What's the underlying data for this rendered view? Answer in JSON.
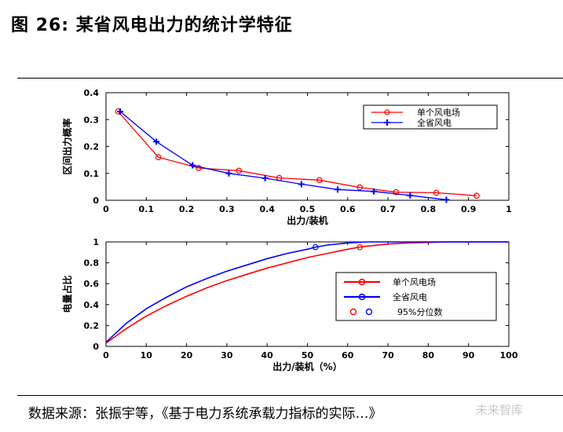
{
  "figure": {
    "title": "图 26: 某省风电出力的统计学特征",
    "source": "数据来源：张振宇等，《基于电力系统承载力指标的实际…》",
    "watermark": "未来智库"
  },
  "colors": {
    "red": "#ff0000",
    "blue": "#0000ff"
  },
  "chart_data": [
    {
      "type": "line",
      "xlabel": "出力/装机",
      "ylabel": "区间出力概率",
      "xlim": [
        0,
        1
      ],
      "ylim": [
        0,
        0.4
      ],
      "x_ticks": [
        0,
        0.1,
        0.2,
        0.3,
        0.4,
        0.5,
        0.6,
        0.7,
        0.8,
        0.9,
        1
      ],
      "x_tick_labels": [
        "0",
        "0.1",
        "0.2",
        "0.3",
        "0.4",
        "0.5",
        "0.6",
        "0.7",
        "0.8",
        "0.9",
        "1"
      ],
      "y_ticks": [
        0,
        0.1,
        0.2,
        0.3,
        0.4
      ],
      "y_tick_labels": [
        "0",
        "0.1",
        "0.2",
        "0.3",
        "0.4"
      ],
      "legend_position": "top-right",
      "series": [
        {
          "name": "单个风电场",
          "color": "#ff0000",
          "marker": "circle",
          "x": [
            0.03,
            0.13,
            0.23,
            0.33,
            0.43,
            0.53,
            0.63,
            0.72,
            0.82,
            0.92
          ],
          "y": [
            0.33,
            0.16,
            0.12,
            0.11,
            0.083,
            0.075,
            0.048,
            0.03,
            0.028,
            0.017
          ]
        },
        {
          "name": "全省风电",
          "color": "#0000ff",
          "marker": "plus",
          "x": [
            0.035,
            0.125,
            0.215,
            0.305,
            0.395,
            0.485,
            0.575,
            0.665,
            0.755,
            0.845
          ],
          "y": [
            0.33,
            0.218,
            0.13,
            0.1,
            0.082,
            0.06,
            0.04,
            0.033,
            0.018,
            0.002
          ]
        }
      ]
    },
    {
      "type": "line",
      "xlabel": "出力/装机（%）",
      "ylabel": "电量占比",
      "xlim": [
        0,
        100
      ],
      "ylim": [
        0,
        1
      ],
      "x_ticks": [
        0,
        10,
        20,
        30,
        40,
        50,
        60,
        70,
        80,
        90,
        100
      ],
      "x_tick_labels": [
        "0",
        "10",
        "20",
        "30",
        "40",
        "50",
        "60",
        "70",
        "80",
        "90",
        "100"
      ],
      "y_ticks": [
        0,
        0.2,
        0.4,
        0.6,
        0.8,
        1
      ],
      "y_tick_labels": [
        "0",
        "0.2",
        "0.4",
        "0.6",
        "0.8",
        "1"
      ],
      "legend_position": "lower-right",
      "series": [
        {
          "name": "单个风电场",
          "color": "#ff0000",
          "x": [
            0,
            5,
            10,
            15,
            20,
            25,
            30,
            35,
            40,
            45,
            50,
            55,
            60,
            63,
            65,
            70,
            75,
            80,
            85,
            90,
            95,
            100
          ],
          "y": [
            0.03,
            0.17,
            0.29,
            0.39,
            0.48,
            0.56,
            0.63,
            0.69,
            0.75,
            0.8,
            0.85,
            0.89,
            0.93,
            0.95,
            0.96,
            0.98,
            0.99,
            0.995,
            1,
            1,
            1,
            1
          ]
        },
        {
          "name": "全省风电",
          "color": "#0000ff",
          "x": [
            0,
            5,
            10,
            15,
            20,
            25,
            30,
            35,
            40,
            45,
            50,
            52,
            55,
            60,
            65,
            70,
            75,
            80,
            85,
            90,
            95,
            100
          ],
          "y": [
            0.04,
            0.22,
            0.36,
            0.47,
            0.57,
            0.65,
            0.72,
            0.78,
            0.84,
            0.89,
            0.93,
            0.95,
            0.97,
            0.99,
            1,
            1,
            1,
            1,
            1,
            1,
            1,
            1
          ]
        }
      ],
      "quantile_95": [
        {
          "series": "单个风电场",
          "x": 63,
          "y": 0.95,
          "color": "#ff0000"
        },
        {
          "series": "全省风电",
          "x": 52,
          "y": 0.95,
          "color": "#0000ff"
        }
      ],
      "quantile_legend_label": "95%分位数"
    }
  ]
}
